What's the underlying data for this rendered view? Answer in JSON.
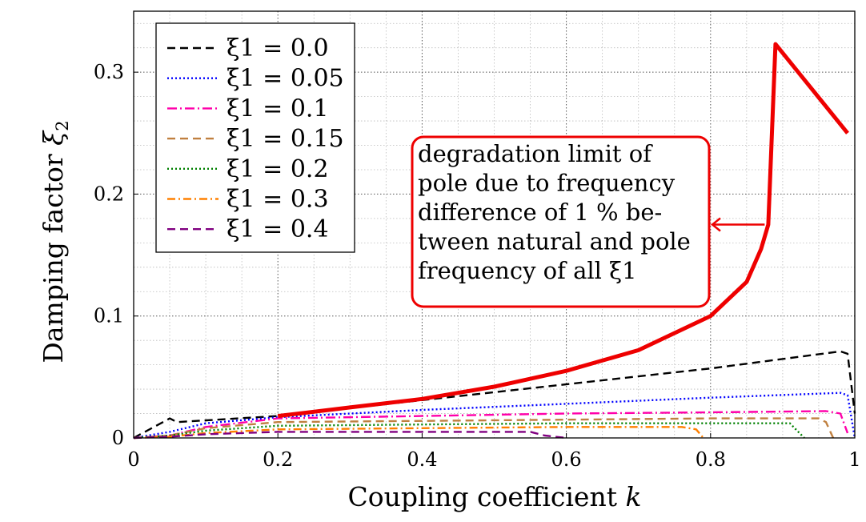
{
  "chart_data": {
    "type": "line",
    "xlabel": "Coupling coefficient k",
    "ylabel": "Damping factor ξ2",
    "xlim": [
      0,
      1
    ],
    "ylim": [
      0,
      0.35
    ],
    "xticks": [
      {
        "v": 0,
        "label": "0"
      },
      {
        "v": 0.2,
        "label": "0.2"
      },
      {
        "v": 0.4,
        "label": "0.4"
      },
      {
        "v": 0.6,
        "label": "0.6"
      },
      {
        "v": 0.8,
        "label": "0.8"
      },
      {
        "v": 1,
        "label": "1"
      }
    ],
    "yticks": [
      {
        "v": 0,
        "label": "0"
      },
      {
        "v": 0.1,
        "label": "0.1"
      },
      {
        "v": 0.2,
        "label": "0.2"
      },
      {
        "v": 0.3,
        "label": "0.3"
      }
    ],
    "grid": "major and minor, dotted",
    "legend_position": "top-left",
    "series": [
      {
        "name": "ξ1 = 0.0",
        "color": "#000000",
        "dash": "10,6",
        "x": [
          0,
          0.05,
          0.06,
          0.2,
          0.4,
          0.6,
          0.8,
          0.98,
          0.99,
          1.0
        ],
        "y": [
          0,
          0.016,
          0.013,
          0.018,
          0.031,
          0.044,
          0.057,
          0.071,
          0.069,
          0.02
        ]
      },
      {
        "name": "ξ1 = 0.05",
        "color": "#0000ff",
        "dash": "2,3",
        "x": [
          0,
          0.05,
          0.1,
          0.2,
          0.4,
          0.6,
          0.8,
          0.98,
          0.99,
          1.0
        ],
        "y": [
          0,
          0.005,
          0.012,
          0.017,
          0.023,
          0.028,
          0.033,
          0.037,
          0.035,
          0.0
        ]
      },
      {
        "name": "ξ1 = 0.1",
        "color": "#ff00aa",
        "dash": "12,4,2,4",
        "x": [
          0,
          0.05,
          0.1,
          0.2,
          0.4,
          0.6,
          0.8,
          0.96,
          0.98,
          0.99
        ],
        "y": [
          0,
          0.002,
          0.009,
          0.016,
          0.018,
          0.02,
          0.021,
          0.022,
          0.02,
          0.004
        ]
      },
      {
        "name": "ξ1 = 0.15",
        "color": "#c08040",
        "dash": "10,6",
        "x": [
          0,
          0.05,
          0.1,
          0.2,
          0.4,
          0.6,
          0.8,
          0.95,
          0.96,
          0.97
        ],
        "y": [
          0,
          0.002,
          0.008,
          0.013,
          0.014,
          0.015,
          0.016,
          0.016,
          0.013,
          0.0
        ]
      },
      {
        "name": "ξ1 = 0.2",
        "color": "#008000",
        "dash": "2,3",
        "x": [
          0,
          0.05,
          0.1,
          0.2,
          0.4,
          0.6,
          0.8,
          0.91,
          0.92,
          0.93
        ],
        "y": [
          0,
          0.002,
          0.006,
          0.01,
          0.011,
          0.012,
          0.012,
          0.012,
          0.006,
          0.0
        ]
      },
      {
        "name": "ξ1 = 0.3",
        "color": "#ff8000",
        "dash": "10,4,2,4",
        "x": [
          0,
          0.05,
          0.1,
          0.2,
          0.4,
          0.6,
          0.76,
          0.78,
          0.79
        ],
        "y": [
          0,
          0.001,
          0.004,
          0.007,
          0.008,
          0.009,
          0.009,
          0.007,
          0.0
        ]
      },
      {
        "name": "ξ1 = 0.4",
        "color": "#800080",
        "dash": "10,6",
        "x": [
          0,
          0.05,
          0.1,
          0.2,
          0.4,
          0.5,
          0.55,
          0.57,
          0.6
        ],
        "y": [
          0,
          0.001,
          0.003,
          0.005,
          0.005,
          0.005,
          0.005,
          0.002,
          0.0
        ]
      },
      {
        "name": "degradation limit",
        "color": "#ee0000",
        "dash": "",
        "in_legend": false,
        "x": [
          0.2,
          0.3,
          0.4,
          0.5,
          0.6,
          0.7,
          0.8,
          0.85,
          0.87,
          0.88,
          0.89,
          0.99
        ],
        "y": [
          0.018,
          0.025,
          0.032,
          0.042,
          0.055,
          0.072,
          0.1,
          0.128,
          0.155,
          0.175,
          0.323,
          0.25
        ]
      }
    ],
    "annotation": {
      "lines": [
        "degradation limit of",
        "pole due to frequency",
        "difference of 1 % be-",
        "tween natural and pole",
        "frequency of all ξ1"
      ],
      "arrow_from": [
        0.875,
        0.175
      ],
      "arrow_to": [
        0.79,
        0.175
      ],
      "color": "#ee0000"
    }
  }
}
